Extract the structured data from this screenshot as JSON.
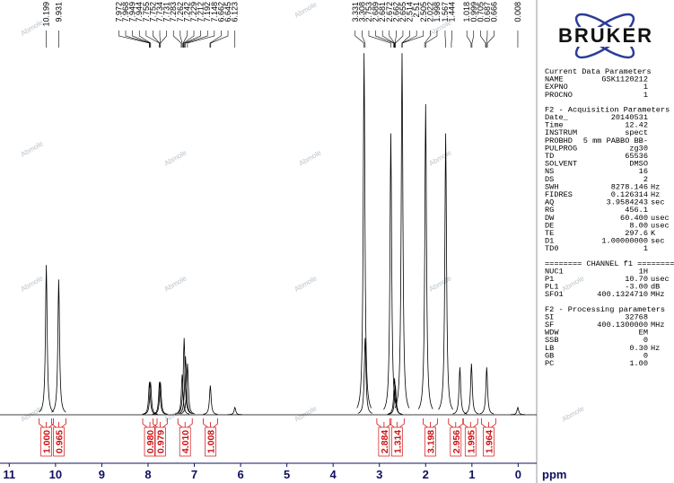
{
  "chart_data": {
    "type": "nmr",
    "x_label": "ppm",
    "xlim": [
      11.2,
      -0.4
    ],
    "xticks": [
      11,
      10,
      9,
      8,
      7,
      6,
      5,
      4,
      3,
      2,
      1,
      0
    ],
    "ylim": [
      0,
      100
    ],
    "color": "#000000",
    "peaks": {
      "x": [
        10.199,
        9.931,
        7.97,
        7.946,
        7.753,
        7.733,
        7.262,
        7.22,
        7.19,
        7.148,
        6.654,
        6.123,
        3.331,
        3.308,
        2.753,
        2.672,
        2.655,
        2.51,
        2.0,
        1.567,
        1.26,
        1.01,
        0.68,
        0.008
      ],
      "values": [
        41,
        37,
        9,
        9,
        9,
        9,
        11,
        21,
        16,
        14,
        8,
        2,
        99,
        21,
        77,
        10,
        8,
        99,
        85,
        77,
        13,
        14,
        13,
        2
      ]
    },
    "peak_labels": [
      10.199,
      9.931,
      7.972,
      7.968,
      7.949,
      7.944,
      7.755,
      7.752,
      7.734,
      7.731,
      7.283,
      7.262,
      7.242,
      7.229,
      7.212,
      7.192,
      7.148,
      6.662,
      6.645,
      6.123,
      3.331,
      3.308,
      2.753,
      2.689,
      2.681,
      2.672,
      2.662,
      2.655,
      2.514,
      2.51,
      2.505,
      2.022,
      1.998,
      1.567,
      1.444,
      1.018,
      0.999,
      0.705,
      0.687,
      0.666,
      0.008
    ],
    "integrals": {
      "x": [
        10.2,
        9.93,
        7.96,
        7.74,
        7.2,
        6.65,
        2.9,
        2.62,
        1.9,
        1.35,
        1.03,
        0.64
      ],
      "values": [
        1,
        0.965,
        0.98,
        0.979,
        4.01,
        1.008,
        2.884,
        1.314,
        3.198,
        2.956,
        1.995,
        1.964
      ],
      "value_labels": [
        "1.000",
        "0.965",
        "0.980",
        "0.979",
        "4.010",
        "1.008",
        "2.884",
        "1.314",
        "3.198",
        "2.956",
        "1.995",
        "1.964"
      ]
    }
  },
  "watermark": "Abmole",
  "panel": {
    "logo": "BRUKER",
    "sections": [
      {
        "title": "Current Data Parameters",
        "rows": [
          [
            "NAME",
            "GSK1120212",
            ""
          ],
          [
            "EXPNO",
            "1",
            ""
          ],
          [
            "PROCNO",
            "1",
            ""
          ]
        ]
      },
      {
        "title": "F2 - Acquisition Parameters",
        "rows": [
          [
            "Date_",
            "20140531",
            ""
          ],
          [
            "Time",
            "12.42",
            ""
          ],
          [
            "INSTRUM",
            "spect",
            ""
          ],
          [
            "PROBHD",
            "5 mm PABBO BB-",
            ""
          ],
          [
            "PULPROG",
            "zg30",
            ""
          ],
          [
            "TD",
            "65536",
            ""
          ],
          [
            "SOLVENT",
            "DMSO",
            ""
          ],
          [
            "NS",
            "16",
            ""
          ],
          [
            "DS",
            "2",
            ""
          ],
          [
            "SWH",
            "8278.146",
            "Hz"
          ],
          [
            "FIDRES",
            "0.126314",
            "Hz"
          ],
          [
            "AQ",
            "3.9584243",
            "sec"
          ],
          [
            "RG",
            "456.1",
            ""
          ],
          [
            "DW",
            "60.400",
            "usec"
          ],
          [
            "DE",
            "8.00",
            "usec"
          ],
          [
            "TE",
            "297.6",
            "K"
          ],
          [
            "D1",
            "1.00000000",
            "sec"
          ],
          [
            "TD0",
            "1",
            ""
          ]
        ]
      },
      {
        "title": "======== CHANNEL f1 ========",
        "rows": [
          [
            "NUC1",
            "1H",
            ""
          ],
          [
            "P1",
            "10.70",
            "usec"
          ],
          [
            "PL1",
            "-3.00",
            "dB"
          ],
          [
            "SFO1",
            "400.1324710",
            "MHz"
          ]
        ]
      },
      {
        "title": "F2 - Processing parameters",
        "rows": [
          [
            "SI",
            "32768",
            ""
          ],
          [
            "SF",
            "400.1300000",
            "MHz"
          ],
          [
            "WDW",
            "EM",
            ""
          ],
          [
            "SSB",
            "0",
            ""
          ],
          [
            "LB",
            "0.30",
            "Hz"
          ],
          [
            "GB",
            "0",
            ""
          ],
          [
            "PC",
            "1.00",
            ""
          ]
        ]
      }
    ]
  }
}
